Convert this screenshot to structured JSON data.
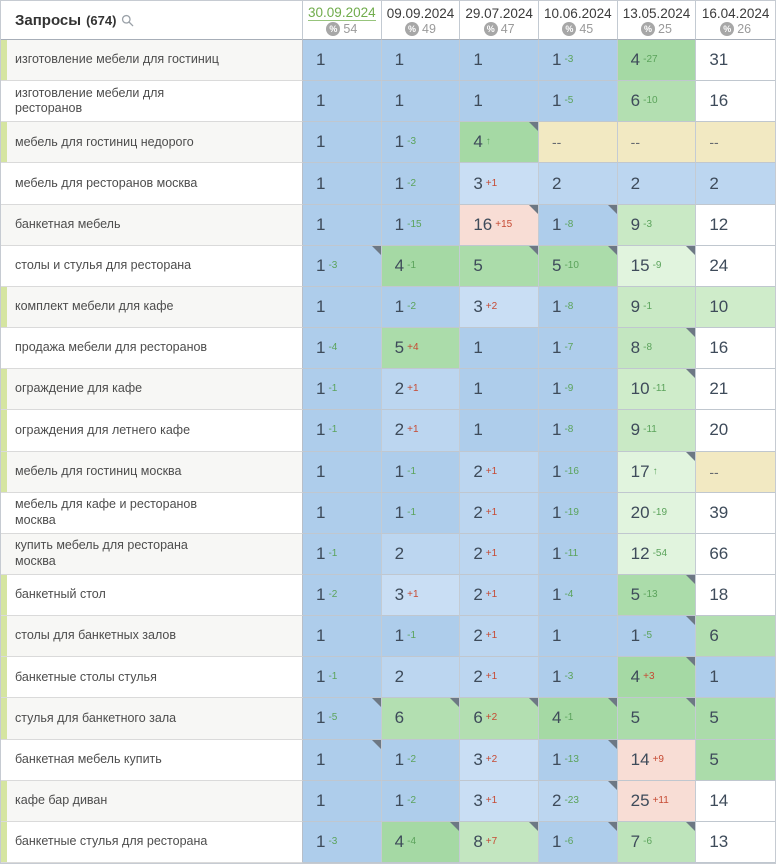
{
  "header": {
    "title": "Запросы",
    "count": "(674)",
    "search_icon": "magnifier",
    "share_icon": "percent-circle",
    "columns": [
      {
        "date": "30.09.2024",
        "share": "54",
        "active": true
      },
      {
        "date": "09.09.2024",
        "share": "49",
        "active": false
      },
      {
        "date": "29.07.2024",
        "share": "47",
        "active": false
      },
      {
        "date": "10.06.2024",
        "share": "45",
        "active": false
      },
      {
        "date": "13.05.2024",
        "share": "25",
        "active": false
      },
      {
        "date": "16.04.2024",
        "share": "26",
        "active": false
      }
    ]
  },
  "palette": {
    "top3_blue": "#aecdeb",
    "top10_green": "#a5d9a4",
    "top30_lightgreen": "#e1f4de",
    "not_ranked_yellow": "#f2e9c2",
    "dropped_red": "#f8ddd5",
    "change_up_green": "#5ba35b",
    "change_down_red": "#c64a33",
    "active_date_green": "#70ac4c",
    "row_stripe_green": "#d5e5a1"
  },
  "rows": [
    {
      "label": "изготовление мебели для гостиниц",
      "stripe": true,
      "cells": [
        {
          "v": "1",
          "bg": "b1"
        },
        {
          "v": "1",
          "bg": "b1"
        },
        {
          "v": "1",
          "bg": "b1"
        },
        {
          "v": "1",
          "sup": "-3",
          "dir": "g",
          "bg": "b1"
        },
        {
          "v": "4",
          "sup": "-27",
          "dir": "g",
          "bg": "g4"
        },
        {
          "v": "31",
          "bg": "w"
        }
      ]
    },
    {
      "label": "изготовление мебели для ресторанов",
      "stripe": false,
      "cells": [
        {
          "v": "1",
          "bg": "b1"
        },
        {
          "v": "1",
          "bg": "b1"
        },
        {
          "v": "1",
          "bg": "b1"
        },
        {
          "v": "1",
          "sup": "-5",
          "dir": "g",
          "bg": "b1"
        },
        {
          "v": "6",
          "sup": "-10",
          "dir": "g",
          "bg": "g6"
        },
        {
          "v": "16",
          "bg": "w"
        }
      ]
    },
    {
      "label": "мебель для гостиниц недорого",
      "stripe": true,
      "cells": [
        {
          "v": "1",
          "bg": "b1"
        },
        {
          "v": "1",
          "sup": "-3",
          "dir": "g",
          "bg": "b1"
        },
        {
          "v": "4",
          "sup": "↑",
          "dir": "g",
          "bg": "g4",
          "tri": true
        },
        {
          "v": "--",
          "bg": "y"
        },
        {
          "v": "--",
          "bg": "y"
        },
        {
          "v": "--",
          "bg": "y"
        }
      ]
    },
    {
      "label": "мебель для ресторанов москва",
      "stripe": false,
      "cells": [
        {
          "v": "1",
          "bg": "b1"
        },
        {
          "v": "1",
          "sup": "-2",
          "dir": "g",
          "bg": "b1"
        },
        {
          "v": "3",
          "sup": "+1",
          "dir": "r",
          "bg": "b3"
        },
        {
          "v": "2",
          "bg": "b2"
        },
        {
          "v": "2",
          "bg": "b2"
        },
        {
          "v": "2",
          "bg": "b2"
        }
      ]
    },
    {
      "label": "банкетная мебель",
      "stripe": false,
      "cells": [
        {
          "v": "1",
          "bg": "b1"
        },
        {
          "v": "1",
          "sup": "-15",
          "dir": "g",
          "bg": "b1"
        },
        {
          "v": "16",
          "sup": "+15",
          "dir": "r",
          "bg": "r",
          "tri": true
        },
        {
          "v": "1",
          "sup": "-8",
          "dir": "g",
          "bg": "b1",
          "tri": true
        },
        {
          "v": "9",
          "sup": "-3",
          "dir": "g",
          "bg": "g9"
        },
        {
          "v": "12",
          "bg": "w"
        }
      ]
    },
    {
      "label": "столы и стулья для ресторана",
      "stripe": false,
      "cells": [
        {
          "v": "1",
          "sup": "-3",
          "dir": "g",
          "bg": "b1",
          "tri": true
        },
        {
          "v": "4",
          "sup": "-1",
          "dir": "g",
          "bg": "g4"
        },
        {
          "v": "5",
          "bg": "g5",
          "tri": true
        },
        {
          "v": "5",
          "sup": "-10",
          "dir": "g",
          "bg": "g5",
          "tri": true
        },
        {
          "v": "15",
          "sup": "-9",
          "dir": "g",
          "bg": "lg",
          "tri": true
        },
        {
          "v": "24",
          "bg": "w"
        }
      ]
    },
    {
      "label": "комплект мебели для кафе",
      "stripe": true,
      "cells": [
        {
          "v": "1",
          "bg": "b1"
        },
        {
          "v": "1",
          "sup": "-2",
          "dir": "g",
          "bg": "b1"
        },
        {
          "v": "3",
          "sup": "+2",
          "dir": "r",
          "bg": "b3"
        },
        {
          "v": "1",
          "sup": "-8",
          "dir": "g",
          "bg": "b1"
        },
        {
          "v": "9",
          "sup": "-1",
          "dir": "g",
          "bg": "g9"
        },
        {
          "v": "10",
          "bg": "g10"
        }
      ]
    },
    {
      "label": "продажа мебели для ресторанов",
      "stripe": false,
      "cells": [
        {
          "v": "1",
          "sup": "-4",
          "dir": "g",
          "bg": "b1"
        },
        {
          "v": "5",
          "sup": "+4",
          "dir": "r",
          "bg": "g5"
        },
        {
          "v": "1",
          "bg": "b1"
        },
        {
          "v": "1",
          "sup": "-7",
          "dir": "g",
          "bg": "b1"
        },
        {
          "v": "8",
          "sup": "-8",
          "dir": "g",
          "bg": "g8",
          "tri": true
        },
        {
          "v": "16",
          "bg": "w"
        }
      ]
    },
    {
      "label": "ограждение для кафе",
      "stripe": true,
      "cells": [
        {
          "v": "1",
          "sup": "-1",
          "dir": "g",
          "bg": "b1"
        },
        {
          "v": "2",
          "sup": "+1",
          "dir": "r",
          "bg": "b2"
        },
        {
          "v": "1",
          "bg": "b1"
        },
        {
          "v": "1",
          "sup": "-9",
          "dir": "g",
          "bg": "b1"
        },
        {
          "v": "10",
          "sup": "-11",
          "dir": "g",
          "bg": "g10",
          "tri": true
        },
        {
          "v": "21",
          "bg": "w"
        }
      ]
    },
    {
      "label": "ограждения для летнего кафе",
      "stripe": true,
      "cells": [
        {
          "v": "1",
          "sup": "-1",
          "dir": "g",
          "bg": "b1"
        },
        {
          "v": "2",
          "sup": "+1",
          "dir": "r",
          "bg": "b2"
        },
        {
          "v": "1",
          "bg": "b1"
        },
        {
          "v": "1",
          "sup": "-8",
          "dir": "g",
          "bg": "b1"
        },
        {
          "v": "9",
          "sup": "-11",
          "dir": "g",
          "bg": "g9"
        },
        {
          "v": "20",
          "bg": "w"
        }
      ]
    },
    {
      "label": "мебель для гостиниц москва",
      "stripe": true,
      "cells": [
        {
          "v": "1",
          "bg": "b1"
        },
        {
          "v": "1",
          "sup": "-1",
          "dir": "g",
          "bg": "b1"
        },
        {
          "v": "2",
          "sup": "+1",
          "dir": "r",
          "bg": "b2"
        },
        {
          "v": "1",
          "sup": "-16",
          "dir": "g",
          "bg": "b1"
        },
        {
          "v": "17",
          "sup": "↑",
          "dir": "g",
          "bg": "lg",
          "tri": true
        },
        {
          "v": "--",
          "bg": "y"
        }
      ]
    },
    {
      "label": "мебель для кафе и ресторанов москва",
      "stripe": false,
      "cells": [
        {
          "v": "1",
          "bg": "b1"
        },
        {
          "v": "1",
          "sup": "-1",
          "dir": "g",
          "bg": "b1"
        },
        {
          "v": "2",
          "sup": "+1",
          "dir": "r",
          "bg": "b2"
        },
        {
          "v": "1",
          "sup": "-19",
          "dir": "g",
          "bg": "b1"
        },
        {
          "v": "20",
          "sup": "-19",
          "dir": "g",
          "bg": "lg"
        },
        {
          "v": "39",
          "bg": "w"
        }
      ]
    },
    {
      "label": "купить мебель для ресторана москва",
      "stripe": false,
      "cells": [
        {
          "v": "1",
          "sup": "-1",
          "dir": "g",
          "bg": "b1"
        },
        {
          "v": "2",
          "bg": "b2"
        },
        {
          "v": "2",
          "sup": "+1",
          "dir": "r",
          "bg": "b2"
        },
        {
          "v": "1",
          "sup": "-11",
          "dir": "g",
          "bg": "b1"
        },
        {
          "v": "12",
          "sup": "-54",
          "dir": "g",
          "bg": "lg"
        },
        {
          "v": "66",
          "bg": "w"
        }
      ]
    },
    {
      "label": "банкетный стол",
      "stripe": true,
      "cells": [
        {
          "v": "1",
          "sup": "-2",
          "dir": "g",
          "bg": "b1"
        },
        {
          "v": "3",
          "sup": "+1",
          "dir": "r",
          "bg": "b3"
        },
        {
          "v": "2",
          "sup": "+1",
          "dir": "r",
          "bg": "b2"
        },
        {
          "v": "1",
          "sup": "-4",
          "dir": "g",
          "bg": "b1"
        },
        {
          "v": "5",
          "sup": "-13",
          "dir": "g",
          "bg": "g5",
          "tri": true
        },
        {
          "v": "18",
          "bg": "w"
        }
      ]
    },
    {
      "label": "столы для банкетных залов",
      "stripe": true,
      "cells": [
        {
          "v": "1",
          "bg": "b1"
        },
        {
          "v": "1",
          "sup": "-1",
          "dir": "g",
          "bg": "b1"
        },
        {
          "v": "2",
          "sup": "+1",
          "dir": "r",
          "bg": "b2"
        },
        {
          "v": "1",
          "bg": "b1"
        },
        {
          "v": "1",
          "sup": "-5",
          "dir": "g",
          "bg": "b1",
          "tri": true
        },
        {
          "v": "6",
          "bg": "g6"
        }
      ]
    },
    {
      "label": "банкетные столы стулья",
      "stripe": true,
      "cells": [
        {
          "v": "1",
          "sup": "-1",
          "dir": "g",
          "bg": "b1"
        },
        {
          "v": "2",
          "bg": "b2"
        },
        {
          "v": "2",
          "sup": "+1",
          "dir": "r",
          "bg": "b2"
        },
        {
          "v": "1",
          "sup": "-3",
          "dir": "g",
          "bg": "b1"
        },
        {
          "v": "4",
          "sup": "+3",
          "dir": "r",
          "bg": "g4",
          "tri": true
        },
        {
          "v": "1",
          "bg": "b1"
        }
      ]
    },
    {
      "label": "стулья для банкетного зала",
      "stripe": true,
      "cells": [
        {
          "v": "1",
          "sup": "-5",
          "dir": "g",
          "bg": "b1",
          "tri": true
        },
        {
          "v": "6",
          "bg": "g6",
          "tri": true
        },
        {
          "v": "6",
          "sup": "+2",
          "dir": "r",
          "bg": "g6",
          "tri": true
        },
        {
          "v": "4",
          "sup": "-1",
          "dir": "g",
          "bg": "g4",
          "tri": true
        },
        {
          "v": "5",
          "bg": "g5",
          "tri": true
        },
        {
          "v": "5",
          "bg": "g5"
        }
      ]
    },
    {
      "label": "банкетная мебель купить",
      "stripe": false,
      "cells": [
        {
          "v": "1",
          "bg": "b1",
          "tri": true
        },
        {
          "v": "1",
          "sup": "-2",
          "dir": "g",
          "bg": "b1"
        },
        {
          "v": "3",
          "sup": "+2",
          "dir": "r",
          "bg": "b3"
        },
        {
          "v": "1",
          "sup": "-13",
          "dir": "g",
          "bg": "b1",
          "tri": true
        },
        {
          "v": "14",
          "sup": "+9",
          "dir": "r",
          "bg": "r"
        },
        {
          "v": "5",
          "bg": "g5"
        }
      ]
    },
    {
      "label": "кафе бар диван",
      "stripe": true,
      "cells": [
        {
          "v": "1",
          "bg": "b1"
        },
        {
          "v": "1",
          "sup": "-2",
          "dir": "g",
          "bg": "b1"
        },
        {
          "v": "3",
          "sup": "+1",
          "dir": "r",
          "bg": "b3"
        },
        {
          "v": "2",
          "sup": "-23",
          "dir": "g",
          "bg": "b2",
          "tri": true
        },
        {
          "v": "25",
          "sup": "+11",
          "dir": "r",
          "bg": "r"
        },
        {
          "v": "14",
          "bg": "w"
        }
      ]
    },
    {
      "label": "банкетные стулья для ресторана",
      "stripe": true,
      "cells": [
        {
          "v": "1",
          "sup": "-3",
          "dir": "g",
          "bg": "b1"
        },
        {
          "v": "4",
          "sup": "-4",
          "dir": "g",
          "bg": "g4",
          "tri": true
        },
        {
          "v": "8",
          "sup": "+7",
          "dir": "r",
          "bg": "g8",
          "tri": true
        },
        {
          "v": "1",
          "sup": "-6",
          "dir": "g",
          "bg": "b1",
          "tri": true
        },
        {
          "v": "7",
          "sup": "-6",
          "dir": "g",
          "bg": "g7",
          "tri": true
        },
        {
          "v": "13",
          "bg": "w"
        }
      ]
    }
  ]
}
